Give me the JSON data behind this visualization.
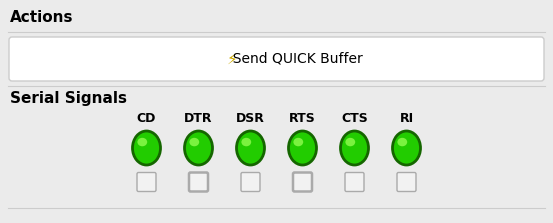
{
  "background_color": "#ebebeb",
  "actions_label": "Actions",
  "button_text": "  Send QUICK Buffer",
  "button_icon": "⚡",
  "signals_label": "Serial Signals",
  "signal_names": [
    "CD",
    "DTR",
    "DSR",
    "RTS",
    "CTS",
    "RI"
  ],
  "circle_color_fill": "#22cc00",
  "circle_color_edge": "#156600",
  "circle_color_highlight": "#99ff55",
  "button_bg": "#ffffff",
  "button_border": "#cccccc",
  "separator_color": "#cccccc",
  "actions_fontsize": 11,
  "signals_fontsize": 11,
  "signal_name_fontsize": 9,
  "button_fontsize": 10,
  "icon_fontsize": 11,
  "icon_color": "#ccaa00",
  "fig_width": 5.53,
  "fig_height": 2.23,
  "dpi": 100
}
